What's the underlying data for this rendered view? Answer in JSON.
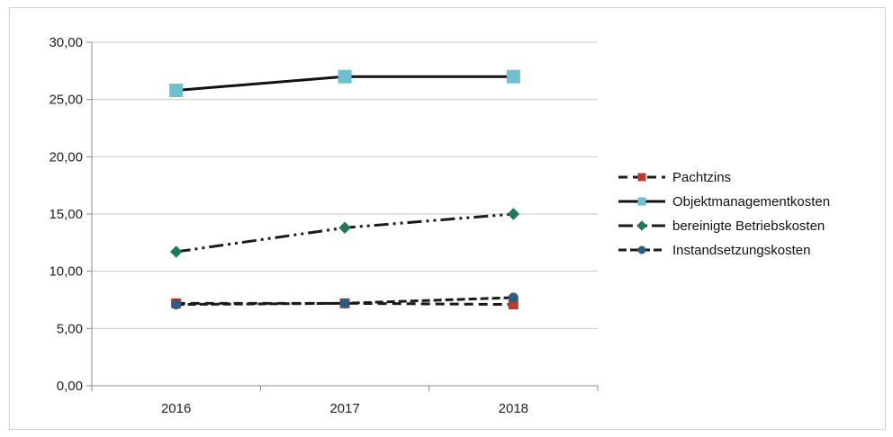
{
  "chart_data": {
    "type": "line",
    "title": "",
    "xlabel": "",
    "ylabel": "",
    "categories": [
      "2016",
      "2017",
      "2018"
    ],
    "ylim": [
      0,
      30
    ],
    "yticks": [
      "0,00",
      "5,00",
      "10,00",
      "15,00",
      "20,00",
      "25,00",
      "30,00"
    ],
    "grid": true,
    "legend_position": "right",
    "series": [
      {
        "name": "Pachtzins",
        "values": [
          7.2,
          7.2,
          7.1
        ],
        "line_color": "#1a1a1a",
        "marker_color": "#c0392b",
        "dash": "10,6",
        "marker": "square"
      },
      {
        "name": "Objektmanagementkosten",
        "values": [
          25.8,
          27.0,
          27.0
        ],
        "line_color": "#111111",
        "marker_color": "#6cc0cf",
        "dash": "",
        "marker": "square"
      },
      {
        "name": "bereinigte Betriebskosten",
        "values": [
          11.7,
          13.8,
          15.0
        ],
        "line_color": "#1a1a1a",
        "marker_color": "#1e7a55",
        "dash": "16,5,3,5,3,5",
        "marker": "diamond"
      },
      {
        "name": "Instandsetzungskosten",
        "values": [
          7.1,
          7.2,
          7.7
        ],
        "line_color": "#1a1a1a",
        "marker_color": "#2c5d86",
        "dash": "9,4",
        "marker": "circle"
      }
    ]
  }
}
